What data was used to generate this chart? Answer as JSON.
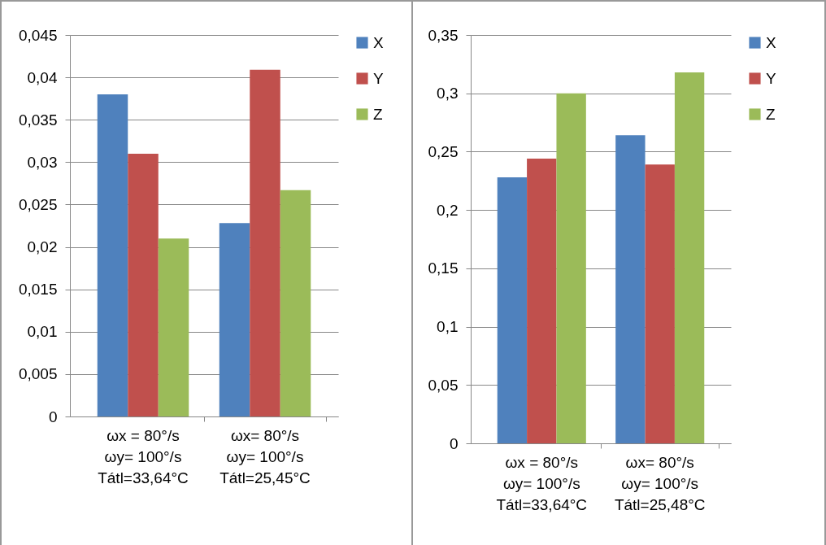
{
  "chart_data": [
    {
      "type": "bar",
      "categories": [
        "ωx = 80°/s\nωy= 100°/s\nTátl=33,64°C",
        "ωx= 80°/s\nωy= 100°/s\nTátl=25,45°C"
      ],
      "series": [
        {
          "name": "X",
          "color": "#4f81bd",
          "values": [
            0.038,
            0.0228
          ]
        },
        {
          "name": "Y",
          "color": "#c0504d",
          "values": [
            0.031,
            0.0409
          ]
        },
        {
          "name": "Z",
          "color": "#9bbb59",
          "values": [
            0.021,
            0.0267
          ]
        }
      ],
      "ylim": [
        0,
        0.045
      ],
      "yticks": [
        0,
        {
          "value": 0.005,
          "label": "0,005"
        },
        {
          "value": 0.01,
          "label": "0,01"
        },
        {
          "value": 0.015,
          "label": "0,015"
        },
        {
          "value": 0.02,
          "label": "0,02"
        },
        {
          "value": 0.025,
          "label": "0,025"
        },
        {
          "value": 0.03,
          "label": "0,03"
        },
        {
          "value": 0.035,
          "label": "0,035"
        },
        {
          "value": 0.04,
          "label": "0,04"
        },
        {
          "value": 0.045,
          "label": "0,045"
        }
      ],
      "grid": "y",
      "legend": "right"
    },
    {
      "type": "bar",
      "categories": [
        "ωx = 80°/s\nωy= 100°/s\nTátl=33,64°C",
        "ωx= 80°/s\nωy= 100°/s\nTátl=25,48°C"
      ],
      "series": [
        {
          "name": "X",
          "color": "#4f81bd",
          "values": [
            0.228,
            0.264
          ]
        },
        {
          "name": "Y",
          "color": "#c0504d",
          "values": [
            0.244,
            0.239
          ]
        },
        {
          "name": "Z",
          "color": "#9bbb59",
          "values": [
            0.3,
            0.318
          ]
        }
      ],
      "ylim": [
        0,
        0.35
      ],
      "yticks": [
        0,
        {
          "value": 0.05,
          "label": "0,05"
        },
        {
          "value": 0.1,
          "label": "0,1"
        },
        {
          "value": 0.15,
          "label": "0,15"
        },
        {
          "value": 0.2,
          "label": "0,2"
        },
        {
          "value": 0.25,
          "label": "0,25"
        },
        {
          "value": 0.3,
          "label": "0,3"
        },
        {
          "value": 0.35,
          "label": "0,35"
        }
      ],
      "grid": "y",
      "legend": "right"
    }
  ]
}
